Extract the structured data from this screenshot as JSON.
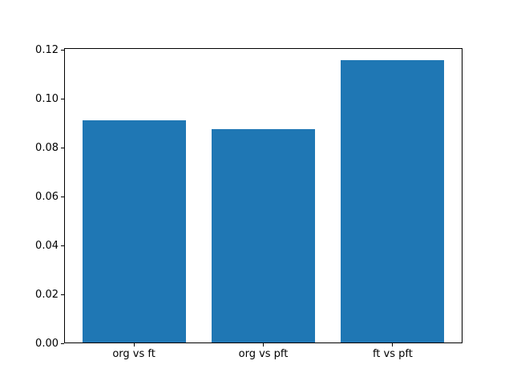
{
  "chart_data": {
    "type": "bar",
    "title": "",
    "xlabel": "",
    "ylabel": "",
    "categories": [
      "org vs ft",
      "org vs pft",
      "ft vs pft"
    ],
    "values": [
      0.0911,
      0.0875,
      0.1157
    ],
    "ylim": [
      0,
      0.1207
    ],
    "ytick_labels": [
      "0.00",
      "0.02",
      "0.04",
      "0.06",
      "0.08",
      "0.10",
      "0.12"
    ],
    "bar_color": "#1f77b4",
    "bar_width_fraction": 0.8,
    "grid": false,
    "legend_position": "none"
  },
  "figure": {
    "background_color": "#ffffff",
    "axis_color": "#000000",
    "tick_label_color": "#000000"
  }
}
